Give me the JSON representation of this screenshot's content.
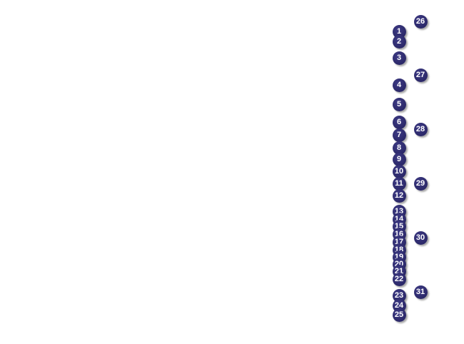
{
  "markers": {
    "color": "#2e2b6e",
    "left_column": [
      "1",
      "2",
      "3",
      "4",
      "5",
      "6",
      "7",
      "8",
      "9",
      "10",
      "11",
      "12",
      "13",
      "14",
      "15",
      "16",
      "17",
      "18",
      "19",
      "20",
      "21",
      "22",
      "23",
      "24",
      "25"
    ],
    "right_column": [
      "26",
      "27",
      "28",
      "29",
      "30",
      "31"
    ]
  }
}
